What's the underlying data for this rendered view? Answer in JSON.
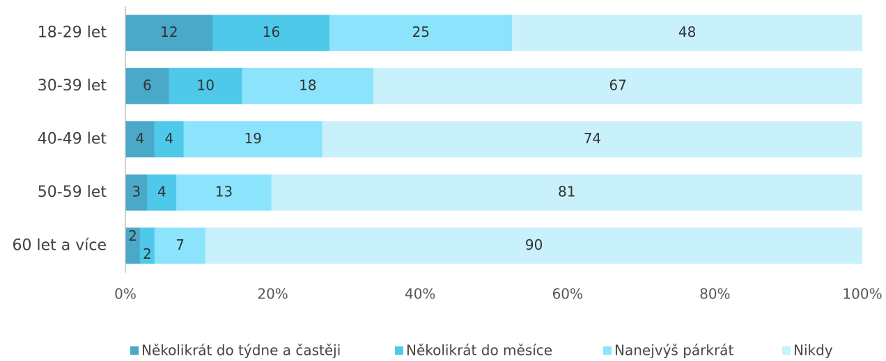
{
  "chart_data": {
    "type": "bar",
    "orientation": "horizontal",
    "stacking": "percent",
    "categories": [
      "18-29 let",
      "30-39 let",
      "40-49 let",
      "50-59 let",
      "60 let a více"
    ],
    "series": [
      {
        "name": "Několikrát do týdne a častěji",
        "color": "#4aa9c9",
        "values": [
          12,
          6,
          4,
          3,
          2
        ]
      },
      {
        "name": "Několikrát do měsíce",
        "color": "#4ec9ea",
        "values": [
          16,
          10,
          4,
          4,
          2
        ]
      },
      {
        "name": "Nanejvýš párkrát",
        "color": "#8be4fb",
        "values": [
          25,
          18,
          19,
          13,
          7
        ]
      },
      {
        "name": "Nikdy",
        "color": "#c9f1fc",
        "values": [
          48,
          67,
          74,
          81,
          90
        ]
      }
    ],
    "xlim": [
      0,
      100
    ],
    "xticks": [
      {
        "value": 0,
        "label": "0%"
      },
      {
        "value": 20,
        "label": "20%"
      },
      {
        "value": 40,
        "label": "40%"
      },
      {
        "value": 60,
        "label": "60%"
      },
      {
        "value": 80,
        "label": "80%"
      },
      {
        "value": 100,
        "label": "100%"
      }
    ],
    "legend": "bottom"
  }
}
